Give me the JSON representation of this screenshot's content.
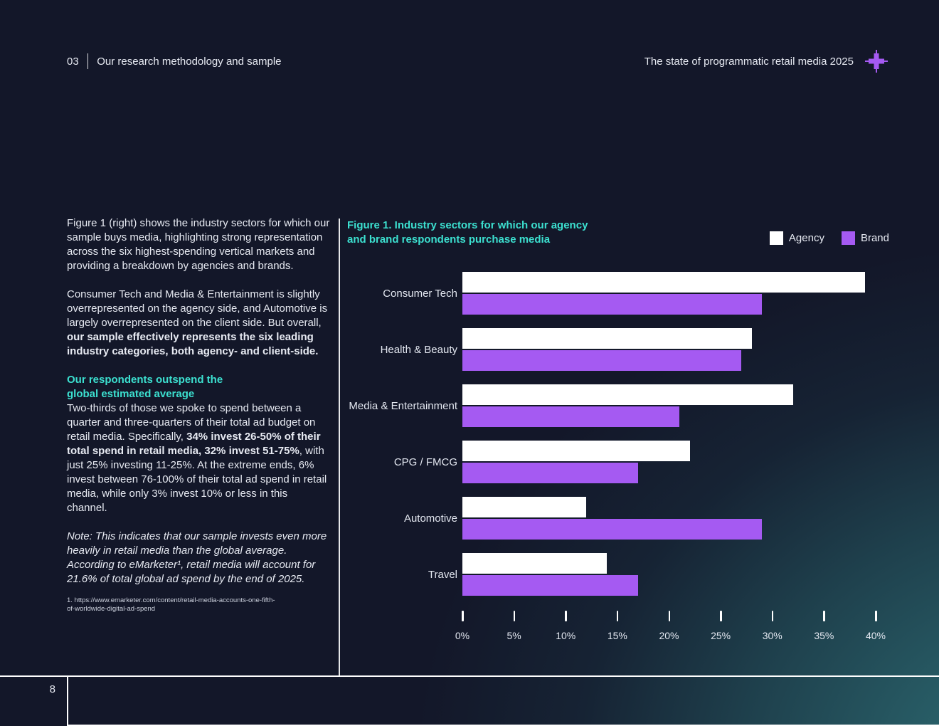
{
  "header": {
    "section_number": "03",
    "section_title": "Our research methodology and sample",
    "report_title": "The state of programmatic retail media 2025"
  },
  "icons": {
    "plus": "+"
  },
  "left_column": {
    "paragraphs": [
      {
        "segments": [
          {
            "t": "Figure 1 (right) shows the industry sectors for which our sample buys media, highlighting strong representation across the six highest-spending vertical markets and providing a breakdown by agencies and brands."
          }
        ]
      },
      {
        "segments": [
          {
            "t": "Consumer Tech and Media & Entertainment is slightly overrepresented on the agency side, and Automotive is largely overrepresented on the client side. But overall, "
          },
          {
            "t": "our sample effectively represents the six leading industry categories, both agency- and client-side.",
            "b": true
          }
        ]
      },
      {
        "heading_lines": [
          "Our respondents outspend the",
          "global estimated average"
        ],
        "segments": [
          {
            "t": "Two-thirds of those we spoke to spend between a quarter and three-quarters of their total ad budget on retail media. Specifically, "
          },
          {
            "t": "34% invest 26-50% of their total spend in retail media, 32% invest 51-75%",
            "b": true
          },
          {
            "t": ", with just 25% investing 11-25%. At the extreme ends, 6% invest between 76-100% of their total ad spend in retail media, while only 3% invest 10% or less in this channel."
          }
        ]
      },
      {
        "segments": [
          {
            "t": "Note: This indicates that our sample invests even more heavily in retail media than the global average. According to eMarketer¹, retail media will account for 21.6% of total global ad spend by the end of 2025.",
            "i": true
          }
        ]
      }
    ],
    "footnote_lines": [
      "1. https://www.emarketer.com/content/retail-media-accounts-one-fifth-",
      "of-worldwide-digital-ad-spend"
    ]
  },
  "chart_data": {
    "type": "bar",
    "orientation": "horizontal",
    "title_lines": [
      "Figure 1. Industry sectors for which our agency",
      "and brand respondents purchase media"
    ],
    "categories": [
      "Consumer Tech",
      "Health & Beauty",
      "Media & Entertainment",
      "CPG / FMCG",
      "Automotive",
      "Travel"
    ],
    "series": [
      {
        "name": "Agency",
        "color": "#ffffff",
        "values": [
          39,
          28,
          32,
          22,
          12,
          14
        ]
      },
      {
        "name": "Brand",
        "color": "#a55af2",
        "values": [
          29,
          27,
          21,
          17,
          29,
          17
        ]
      }
    ],
    "values_unit": "%",
    "xlim": [
      0,
      40
    ],
    "tick_step": 5,
    "tick_labels": [
      "0%",
      "5%",
      "10%",
      "15%",
      "20%",
      "25%",
      "30%",
      "35%",
      "40%"
    ],
    "legend_position": "top-right",
    "grid": false
  },
  "footer": {
    "page_number": "8"
  },
  "colors": {
    "background": "#131729",
    "accent_purple": "#a55af2",
    "accent_teal": "#3ce0d0",
    "bar_agency": "#ffffff",
    "bar_brand": "#a55af2"
  }
}
